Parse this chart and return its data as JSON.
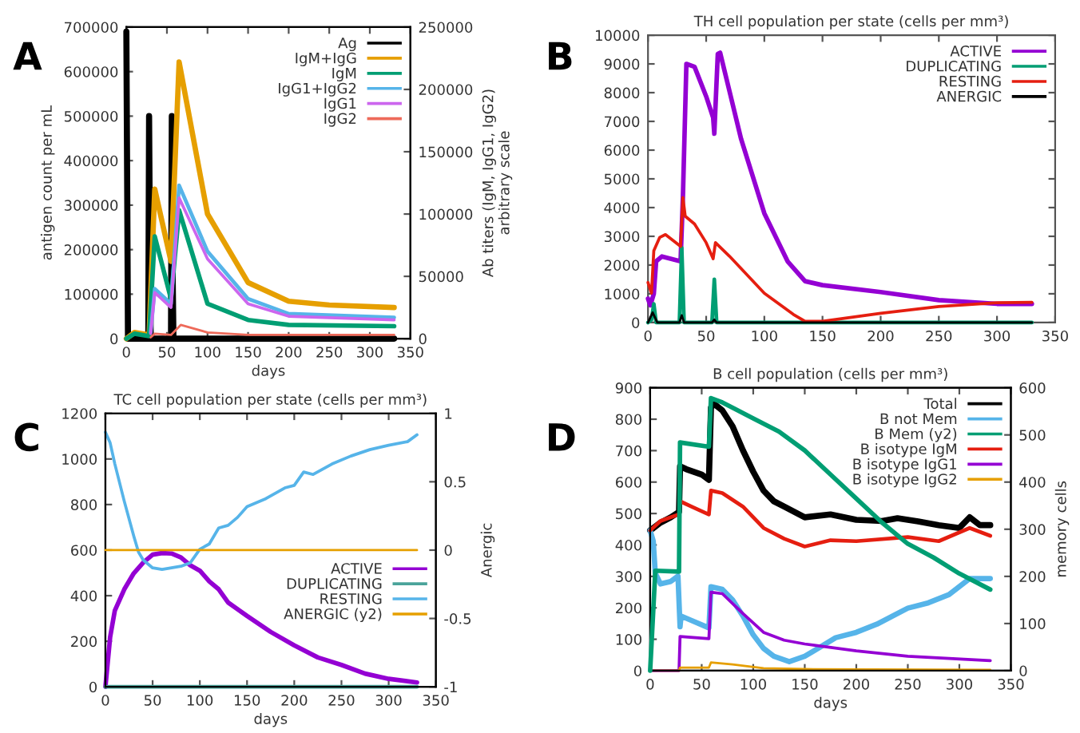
{
  "chart_data": [
    {
      "type": "line",
      "xlabel": "days",
      "ylabel": "antigen count per mL",
      "y2label": "Ab titers (IgM, IgG1, IgG2)\narbitrary scale",
      "annotations": [
        "A"
      ],
      "xlim": [
        0,
        350
      ],
      "xticks": [
        0,
        50,
        100,
        150,
        200,
        250,
        300,
        350
      ],
      "ylim": [
        0,
        700000
      ],
      "yticks": [
        0,
        100000,
        200000,
        300000,
        400000,
        500000,
        600000,
        700000
      ],
      "y2lim": [
        0,
        250000
      ],
      "y2ticks": [
        0,
        50000,
        100000,
        150000,
        200000,
        250000
      ],
      "legend": "top right",
      "grid": false,
      "marker": "none",
      "line_style": "solid",
      "series": [
        {
          "name": "Ag",
          "color": "#000000",
          "x": [
            0,
            1,
            2,
            27,
            28,
            29,
            30,
            55,
            56,
            57,
            58,
            330
          ],
          "values": [
            690000,
            350000,
            0,
            0,
            500000,
            200000,
            0,
            0,
            500000,
            150000,
            0,
            0
          ]
        },
        {
          "name": "IgM+IgG",
          "color": "#e69f00",
          "axis": "y2",
          "x": [
            0,
            10,
            28,
            35,
            55,
            65,
            100,
            150,
            200,
            250,
            330
          ],
          "values": [
            0,
            5000,
            3000,
            120000,
            62000,
            222000,
            100000,
            45000,
            30000,
            27000,
            25000
          ]
        },
        {
          "name": "IgM",
          "color": "#009e73",
          "axis": "y2",
          "x": [
            0,
            10,
            28,
            35,
            55,
            65,
            100,
            150,
            200,
            330
          ],
          "values": [
            0,
            4000,
            2000,
            82000,
            32000,
            103000,
            28000,
            15000,
            11000,
            10000
          ]
        },
        {
          "name": "IgG1+IgG2",
          "color": "#56b4e9",
          "axis": "y2",
          "x": [
            30,
            35,
            55,
            65,
            100,
            150,
            200,
            330
          ],
          "values": [
            5000,
            40000,
            28000,
            123000,
            70000,
            32000,
            20000,
            17000
          ]
        },
        {
          "name": "IgG1",
          "color": "#cc66ee",
          "axis": "y2",
          "x": [
            30,
            35,
            55,
            65,
            100,
            150,
            200,
            330
          ],
          "values": [
            4000,
            37000,
            25000,
            113000,
            64000,
            28000,
            18000,
            15000
          ]
        },
        {
          "name": "IgG2",
          "color": "#ee6a5a",
          "axis": "y2",
          "x": [
            30,
            35,
            55,
            67,
            100,
            150,
            330
          ],
          "values": [
            1000,
            4000,
            3000,
            11000,
            5000,
            3000,
            3000
          ]
        }
      ]
    },
    {
      "type": "line",
      "title": "TH cell population per state (cells per mm³)",
      "annotations": [
        "B"
      ],
      "xlim": [
        0,
        350
      ],
      "xticks": [
        0,
        50,
        100,
        150,
        200,
        250,
        300,
        350
      ],
      "ylim": [
        0,
        10000
      ],
      "yticks": [
        0,
        1000,
        2000,
        3000,
        4000,
        5000,
        6000,
        7000,
        8000,
        9000,
        10000
      ],
      "legend": "top right",
      "grid": false,
      "marker": "none",
      "line_style": "solid",
      "series": [
        {
          "name": "ACTIVE",
          "color": "#9400d3",
          "x": [
            0,
            2,
            5,
            7,
            12,
            28,
            30,
            33,
            40,
            50,
            56,
            57,
            60,
            62,
            70,
            80,
            100,
            120,
            135,
            150,
            200,
            250,
            300,
            330
          ],
          "values": [
            830,
            600,
            1000,
            2130,
            2300,
            2130,
            4350,
            9000,
            8900,
            7870,
            7130,
            6570,
            9350,
            9390,
            8060,
            6390,
            3800,
            2130,
            1440,
            1300,
            1060,
            780,
            650,
            650
          ]
        },
        {
          "name": "DUPLICATING",
          "color": "#009e73",
          "x": [
            0,
            3,
            5,
            7,
            27,
            29,
            31,
            55,
            57,
            59,
            330
          ],
          "values": [
            0,
            100,
            650,
            0,
            0,
            2600,
            0,
            0,
            1500,
            0,
            0
          ]
        },
        {
          "name": "RESTING",
          "color": "#e51e10",
          "x": [
            0,
            3,
            5,
            10,
            15,
            28,
            30,
            32,
            40,
            50,
            56,
            58,
            70,
            100,
            125,
            135,
            150,
            200,
            250,
            300,
            330
          ],
          "values": [
            1390,
            1020,
            2500,
            2960,
            3060,
            2650,
            4350,
            3700,
            3430,
            2780,
            2220,
            2780,
            2310,
            1020,
            280,
            40,
            40,
            320,
            560,
            690,
            700
          ]
        },
        {
          "name": "ANERGIC",
          "color": "#000000",
          "x": [
            0,
            4,
            8,
            27,
            29,
            31,
            55,
            57,
            59,
            330
          ],
          "values": [
            0,
            350,
            0,
            0,
            250,
            0,
            0,
            100,
            0,
            0
          ]
        }
      ]
    },
    {
      "type": "line",
      "title": "TC cell population per state (cells per mm³)",
      "xlabel": "days",
      "y2label": "Anergic",
      "annotations": [
        "C"
      ],
      "xlim": [
        0,
        350
      ],
      "xticks": [
        0,
        50,
        100,
        150,
        200,
        250,
        300,
        350
      ],
      "ylim": [
        0,
        1200
      ],
      "yticks": [
        0,
        200,
        400,
        600,
        800,
        1000,
        1200
      ],
      "y2lim": [
        -1,
        1
      ],
      "y2ticks": [
        -1,
        -0.5,
        0,
        0.5,
        1
      ],
      "legend": "bottom right",
      "grid": false,
      "marker": "none",
      "line_style": "solid",
      "series": [
        {
          "name": "ACTIVE",
          "color": "#9400d3",
          "x": [
            0,
            5,
            10,
            20,
            30,
            40,
            50,
            60,
            70,
            80,
            90,
            100,
            110,
            120,
            130,
            150,
            175,
            200,
            225,
            250,
            275,
            300,
            330
          ],
          "values": [
            0,
            218,
            335,
            428,
            498,
            545,
            580,
            587,
            585,
            568,
            533,
            510,
            463,
            428,
            370,
            311,
            241,
            182,
            129,
            96,
            58,
            35,
            19
          ]
        },
        {
          "name": "DUPLICATING",
          "color": "#4aa39a",
          "x": [
            0,
            330
          ],
          "values": [
            0,
            0
          ]
        },
        {
          "name": "RESTING",
          "color": "#56b4e9",
          "x": [
            0,
            5,
            10,
            20,
            30,
            35,
            40,
            50,
            60,
            70,
            80,
            90,
            100,
            110,
            120,
            130,
            140,
            150,
            170,
            190,
            200,
            210,
            220,
            240,
            260,
            280,
            300,
            320,
            330
          ],
          "values": [
            1118,
            1071,
            978,
            814,
            662,
            592,
            557,
            522,
            515,
            522,
            529,
            545,
            604,
            627,
            697,
            709,
            744,
            791,
            826,
            873,
            884,
            943,
            932,
            978,
            1013,
            1041,
            1060,
            1076,
            1106
          ]
        },
        {
          "name": "ANERGIC (y2)",
          "color": "#e69f00",
          "axis": "y2",
          "x": [
            0,
            330
          ],
          "values": [
            0,
            0
          ]
        }
      ]
    },
    {
      "type": "line",
      "title": "B cell population (cells per mm³)",
      "xlabel": "days",
      "y2label": "memory cells",
      "annotations": [
        "D"
      ],
      "xlim": [
        0,
        350
      ],
      "xticks": [
        0,
        50,
        100,
        150,
        200,
        250,
        300,
        350
      ],
      "ylim": [
        0,
        900
      ],
      "yticks": [
        0,
        100,
        200,
        300,
        400,
        500,
        600,
        700,
        800,
        900
      ],
      "y2lim": [
        0,
        600
      ],
      "y2ticks": [
        0,
        100,
        200,
        300,
        400,
        500,
        600
      ],
      "legend": "top right",
      "grid": false,
      "marker": "none",
      "line_style": "solid",
      "series": [
        {
          "name": "Total",
          "color": "#000000",
          "x": [
            0,
            10,
            20,
            28,
            29,
            35,
            50,
            57,
            59,
            62,
            70,
            80,
            90,
            100,
            110,
            120,
            130,
            150,
            175,
            200,
            225,
            240,
            260,
            280,
            300,
            310,
            320,
            330
          ],
          "values": [
            446,
            471,
            488,
            505,
            650,
            641,
            624,
            607,
            837,
            849,
            828,
            777,
            701,
            633,
            573,
            539,
            522,
            488,
            497,
            480,
            476,
            485,
            475,
            463,
            454,
            488,
            463,
            463
          ]
        },
        {
          "name": "B not Mem",
          "color": "#56b4e9",
          "x": [
            0,
            3,
            5,
            10,
            20,
            27,
            29,
            30,
            40,
            57,
            59,
            70,
            80,
            90,
            100,
            110,
            120,
            135,
            150,
            165,
            180,
            200,
            220,
            250,
            270,
            290,
            310,
            330
          ],
          "values": [
            446,
            412,
            310,
            276,
            284,
            301,
            140,
            174,
            160,
            136,
            267,
            259,
            225,
            174,
            114,
            71,
            46,
            29,
            46,
            75,
            105,
            122,
            148,
            199,
            216,
            242,
            293,
            293
          ]
        },
        {
          "name": "B Mem (y2)",
          "color": "#009e73",
          "axis": "y2",
          "x": [
            0,
            5,
            28,
            29,
            57,
            59,
            70,
            100,
            125,
            150,
            175,
            200,
            225,
            250,
            275,
            300,
            330
          ],
          "values": [
            0,
            212,
            210,
            484,
            475,
            578,
            569,
            535,
            507,
            467,
            416,
            365,
            314,
            269,
            240,
            206,
            172
          ]
        },
        {
          "name": "B isotype IgM",
          "color": "#e51e10",
          "x": [
            0,
            10,
            20,
            28,
            29,
            40,
            57,
            59,
            70,
            90,
            110,
            130,
            150,
            175,
            200,
            250,
            280,
            310,
            330
          ],
          "values": [
            446,
            476,
            488,
            497,
            539,
            522,
            497,
            573,
            565,
            522,
            454,
            420,
            395,
            415,
            412,
            425,
            412,
            454,
            429
          ]
        },
        {
          "name": "B isotype IgG1",
          "color": "#9400d3",
          "x": [
            0,
            28,
            29,
            57,
            59,
            70,
            90,
            110,
            130,
            150,
            200,
            250,
            330
          ],
          "values": [
            0,
            0,
            109,
            102,
            250,
            245,
            182,
            122,
            97,
            85,
            63,
            46,
            32
          ]
        },
        {
          "name": "B isotype IgG2",
          "color": "#e69f00",
          "x": [
            0,
            28,
            29,
            57,
            59,
            80,
            110,
            150,
            330
          ],
          "values": [
            0,
            0,
            10,
            10,
            26,
            20,
            8,
            5,
            3
          ]
        }
      ]
    }
  ]
}
